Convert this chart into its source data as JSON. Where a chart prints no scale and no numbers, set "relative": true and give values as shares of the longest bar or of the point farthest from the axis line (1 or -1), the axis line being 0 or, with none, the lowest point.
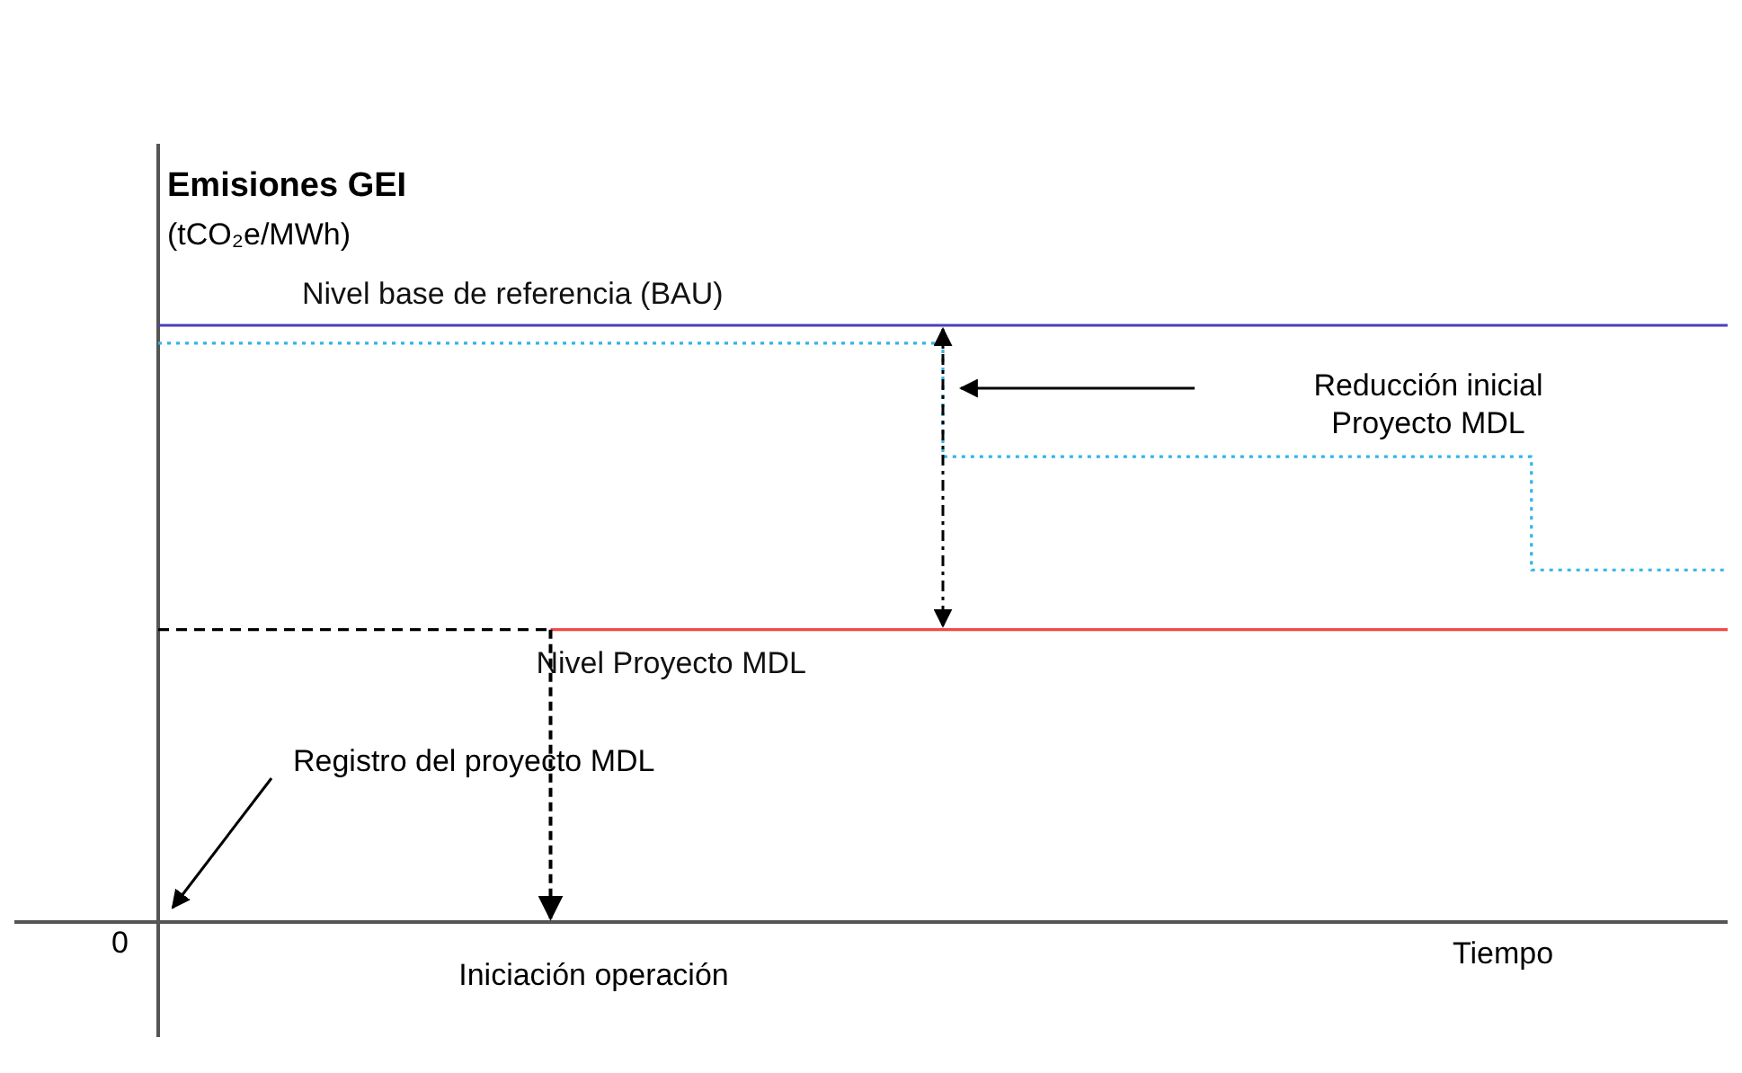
{
  "chart_data": {
    "type": "line",
    "relative": true,
    "title": "Emisiones GEI",
    "ylabel": "(tCO₂e/MWh)",
    "xlabel": "Tiempo",
    "categories": [
      null,
      null,
      null,
      null,
      null,
      null,
      null,
      null,
      null
    ],
    "series": [
      {
        "name": "Nivel base de referencia (BAU)",
        "color": "#4b3fbf",
        "type": "line",
        "line_style": "solid",
        "values": [
          1,
          1,
          1,
          1,
          1,
          1,
          1,
          1,
          1
        ]
      },
      {
        "color": "#33b5e5",
        "type": "step",
        "line_style": "dotted",
        "values": [
          0.97,
          0.97,
          0.97,
          0.97,
          0.78,
          0.78,
          0.78,
          0.59,
          0.59
        ]
      },
      {
        "name": "Nivel Proyecto MDL",
        "color": "#f04a4a",
        "type": "line",
        "line_style": "solid",
        "values": [
          null,
          null,
          0.49,
          0.49,
          0.49,
          0.49,
          0.49,
          0.49,
          0.49
        ]
      },
      {
        "color": "#000000",
        "type": "line",
        "line_style": "dashed",
        "values": [
          0.49,
          0.49,
          0.49,
          null,
          null,
          null,
          null,
          null,
          null
        ]
      }
    ],
    "annotations": [
      "0",
      "Registro del proyecto MDL",
      "Reducción inicial\nProyecto MDL",
      "Iniciación operación"
    ]
  }
}
